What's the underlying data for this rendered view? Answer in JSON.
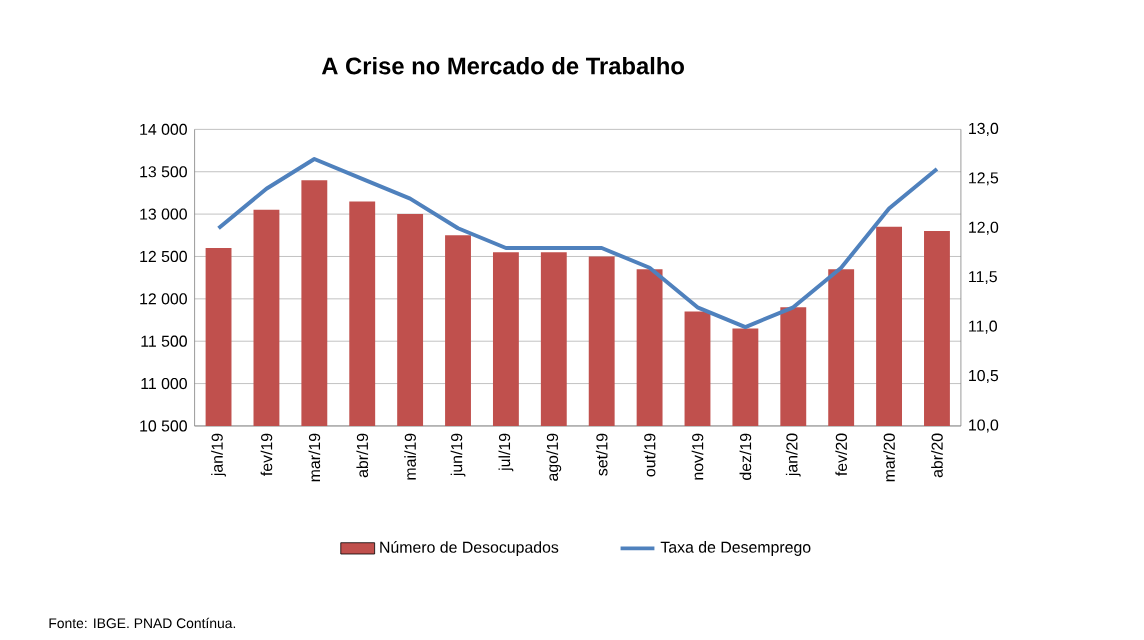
{
  "chart_data": {
    "type": "bar",
    "title": "A Crise no Mercado de Trabalho",
    "categories": [
      "jan/19",
      "fev/19",
      "mar/19",
      "abr/19",
      "mai/19",
      "jun/19",
      "jul/19",
      "ago/19",
      "set/19",
      "out/19",
      "nov/19",
      "dez/19",
      "jan/20",
      "fev/20",
      "mar/20",
      "abr/20"
    ],
    "series": [
      {
        "name": "Número de Desocupados",
        "color": "#c0504d",
        "values": [
          12600,
          13050,
          13400,
          13150,
          13000,
          12750,
          12550,
          12550,
          12500,
          12350,
          11850,
          11650,
          11900,
          12350,
          12850,
          12800
        ]
      },
      {
        "name": "Taxa de Desemprego",
        "type": "line",
        "axis": "y2",
        "color": "#4f81bd",
        "values": [
          12.0,
          12.4,
          12.7,
          12.5,
          12.3,
          12.0,
          11.8,
          11.8,
          11.8,
          11.6,
          11.2,
          11.0,
          11.2,
          11.6,
          12.2,
          12.6
        ]
      }
    ],
    "ylim": [
      10500,
      14000
    ],
    "yticks": [
      {
        "value": 10500,
        "label": "10 500"
      },
      {
        "value": 11000,
        "label": "11 000"
      },
      {
        "value": 11500,
        "label": "11 500"
      },
      {
        "value": 12000,
        "label": "12 000"
      },
      {
        "value": 12500,
        "label": "12 500"
      },
      {
        "value": 13000,
        "label": "13 000"
      },
      {
        "value": 13500,
        "label": "13 500"
      },
      {
        "value": 14000,
        "label": "14 000"
      }
    ],
    "y2lim": [
      10.0,
      13.0
    ],
    "y2ticks": [
      {
        "value": 10.0,
        "label": "10,0"
      },
      {
        "value": 10.5,
        "label": "10,5"
      },
      {
        "value": 11.0,
        "label": "11,0"
      },
      {
        "value": 11.5,
        "label": "11,5"
      },
      {
        "value": 12.0,
        "label": "12,0"
      },
      {
        "value": 12.5,
        "label": "12,5"
      },
      {
        "value": 13.0,
        "label": "13,0"
      }
    ],
    "grid": "y",
    "legend": "bottom",
    "marker": "none",
    "annotations": [
      "Fonte: IBGE. PNAD Contínua."
    ]
  }
}
